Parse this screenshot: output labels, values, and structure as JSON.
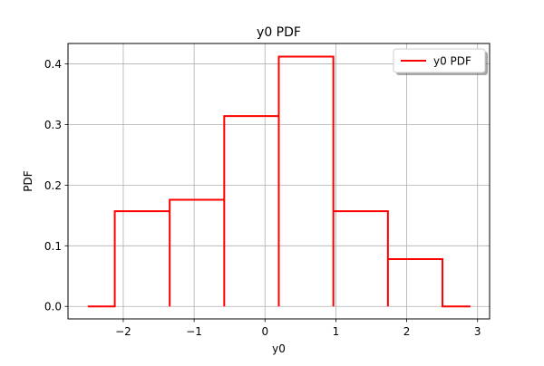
{
  "chart_data": {
    "type": "line",
    "title": "y0 PDF",
    "xlabel": "y0",
    "ylabel": "PDF",
    "xlim": [
      -2.78,
      3.17
    ],
    "ylim": [
      -0.0206,
      0.4337
    ],
    "xticks": [
      -2,
      -1,
      0,
      1,
      2,
      3
    ],
    "xtick_labels": [
      "−2",
      "−1",
      "0",
      "1",
      "2",
      "3"
    ],
    "yticks": [
      0.0,
      0.1,
      0.2,
      0.3,
      0.4
    ],
    "ytick_labels": [
      "0.0",
      "0.1",
      "0.2",
      "0.3",
      "0.4"
    ],
    "grid": true,
    "legend_position": "top-right",
    "series": [
      {
        "name": "y0 PDF",
        "color": "#ff0000",
        "x": [
          -2.5,
          -2.12,
          -2.12,
          -1.345,
          -1.345,
          -1.345,
          -0.575,
          -0.575,
          -0.575,
          0.195,
          0.195,
          0.195,
          0.965,
          0.965,
          0.965,
          1.735,
          1.735,
          1.735,
          2.505,
          2.505,
          2.505,
          2.9
        ],
        "y": [
          0.0,
          0.0,
          0.157,
          0.157,
          0.0,
          0.176,
          0.176,
          0.0,
          0.314,
          0.314,
          0.0,
          0.412,
          0.412,
          0.0,
          0.157,
          0.157,
          0.0,
          0.078,
          0.078,
          0.0,
          0.0,
          0.0
        ]
      }
    ]
  }
}
